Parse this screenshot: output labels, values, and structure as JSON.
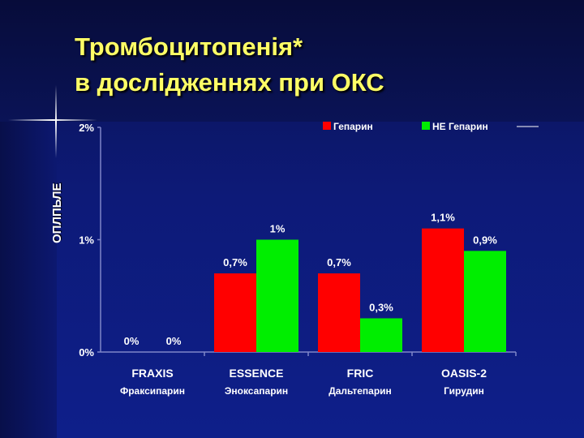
{
  "title_lines": [
    "Тромбоцитопенія*",
    "в дослідженнях при ОКС"
  ],
  "chart_data": {
    "type": "bar",
    "ylabel": "ОПЛПЬЛЕ",
    "categories": [
      "FRAXIS",
      "ESSENCE",
      "FRIC",
      "OASIS-2"
    ],
    "subcategories": [
      "Фраксипарин",
      "Эноксапарин",
      "Дальтепарин",
      "Гирудин"
    ],
    "series": [
      {
        "name": "Гепарин",
        "color": "#ff0000",
        "values": [
          0,
          0.7,
          0.7,
          1.1
        ],
        "labels": [
          "0%",
          "0,7%",
          "0,7%",
          "1,1%"
        ]
      },
      {
        "name": "НЕ Гепарин",
        "color": "#00ee00",
        "values": [
          0,
          1.0,
          0.3,
          0.9
        ],
        "labels": [
          "0%",
          "1%",
          "0,3%",
          "0,9%"
        ]
      }
    ],
    "ylim": [
      0,
      2
    ],
    "yticks": [
      0,
      1,
      2
    ],
    "ytick_labels": [
      "0%",
      "1%",
      "2%"
    ],
    "legend_position": "top-right",
    "grid": false
  }
}
